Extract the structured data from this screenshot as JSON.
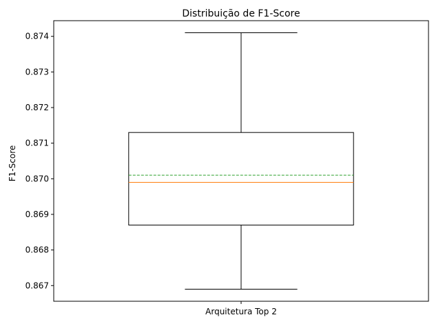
{
  "chart_data": {
    "type": "box",
    "title": "Distribuição de F1-Score",
    "xlabel": "",
    "ylabel": "F1-Score",
    "categories": [
      "Arquitetura Top 2"
    ],
    "boxes": [
      {
        "category": "Arquitetura Top 2",
        "whisker_low": 0.8669,
        "q1": 0.8687,
        "median": 0.8699,
        "mean": 0.8701,
        "q3": 0.8713,
        "whisker_high": 0.8741
      }
    ],
    "ylim": [
      0.86656,
      0.87444
    ],
    "yticks": [
      0.867,
      0.868,
      0.869,
      0.87,
      0.871,
      0.872,
      0.873,
      0.874
    ],
    "ytick_labels": [
      "0.867",
      "0.868",
      "0.869",
      "0.870",
      "0.871",
      "0.872",
      "0.873",
      "0.874"
    ],
    "grid": false,
    "colors": {
      "box": "#000000",
      "median": "#ff7f0e",
      "mean": "#2ca02c"
    }
  }
}
